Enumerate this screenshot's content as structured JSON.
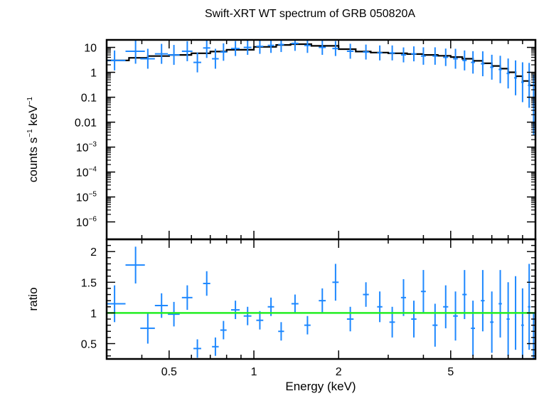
{
  "chart_data": {
    "type": "scatter",
    "title": "Swift-XRT WT spectrum of GRB 050820A",
    "xlabel": "Energy (keV)",
    "xscale": "log",
    "xlim": [
      0.3,
      10.0
    ],
    "xticks": [
      {
        "value": 0.5,
        "label": "0.5"
      },
      {
        "value": 1,
        "label": "1"
      },
      {
        "value": 2,
        "label": "2"
      },
      {
        "value": 5,
        "label": "5"
      }
    ],
    "colors": {
      "data": "#1e88ff",
      "model": "#000000",
      "unity": "#22ee22"
    },
    "panels": [
      {
        "name": "spectrum",
        "ylabel_main": "counts s",
        "ylabel_sup1": "−1",
        "ylabel_mid": " keV",
        "ylabel_sup2": "−1",
        "yscale": "log",
        "ylim": [
          2e-07,
          20
        ],
        "yticks": [
          {
            "value": 10,
            "base": "10",
            "exp": ""
          },
          {
            "value": 1,
            "base": "1",
            "exp": ""
          },
          {
            "value": 0.1,
            "base": "0.1",
            "exp": ""
          },
          {
            "value": 0.01,
            "base": "0.01",
            "exp": ""
          },
          {
            "value": 0.001,
            "base": "10",
            "exp": "−3"
          },
          {
            "value": 0.0001,
            "base": "10",
            "exp": "−4"
          },
          {
            "value": 1e-05,
            "base": "10",
            "exp": "−5"
          },
          {
            "value": 1e-06,
            "base": "10",
            "exp": "−6"
          }
        ],
        "model_x": [
          0.3,
          0.36,
          0.42,
          0.5,
          0.6,
          0.7,
          0.8,
          1.0,
          1.2,
          1.35,
          1.6,
          2.0,
          2.3,
          2.6,
          3.0,
          3.5,
          4.0,
          4.5,
          5.0,
          5.5,
          6.0,
          6.5,
          7.0,
          7.5,
          8.0,
          8.5,
          9.0,
          9.5,
          10.0
        ],
        "model_y": [
          3.0,
          3.8,
          4.5,
          5.0,
          5.8,
          6.8,
          8.0,
          10.5,
          12.5,
          13.5,
          11.5,
          8.5,
          6.8,
          6.2,
          5.8,
          5.4,
          5.0,
          4.6,
          4.1,
          3.5,
          2.9,
          2.3,
          1.8,
          1.4,
          1.0,
          0.7,
          0.45,
          0.3,
          0.25
        ],
        "points": [
          {
            "x": 0.32,
            "y": 3.0,
            "xerr": 0.03,
            "yerr": 0.4
          },
          {
            "x": 0.38,
            "y": 7.0,
            "xerr": 0.03,
            "yerr": 0.5
          },
          {
            "x": 0.42,
            "y": 3.5,
            "xerr": 0.025,
            "yerr": 0.4
          },
          {
            "x": 0.47,
            "y": 5.5,
            "xerr": 0.025,
            "yerr": 0.4
          },
          {
            "x": 0.52,
            "y": 5.0,
            "xerr": 0.025,
            "yerr": 0.4
          },
          {
            "x": 0.58,
            "y": 7.0,
            "xerr": 0.025,
            "yerr": 0.4
          },
          {
            "x": 0.63,
            "y": 2.5,
            "xerr": 0.02,
            "yerr": 0.4
          },
          {
            "x": 0.68,
            "y": 9.5,
            "xerr": 0.02,
            "yerr": 0.4
          },
          {
            "x": 0.73,
            "y": 3.5,
            "xerr": 0.02,
            "yerr": 0.4
          },
          {
            "x": 0.78,
            "y": 6.5,
            "xerr": 0.02,
            "yerr": 0.35
          },
          {
            "x": 0.86,
            "y": 9.0,
            "xerr": 0.03,
            "yerr": 0.3
          },
          {
            "x": 0.95,
            "y": 10.0,
            "xerr": 0.03,
            "yerr": 0.3
          },
          {
            "x": 1.05,
            "y": 11.0,
            "xerr": 0.03,
            "yerr": 0.3
          },
          {
            "x": 1.15,
            "y": 12.0,
            "xerr": 0.03,
            "yerr": 0.3
          },
          {
            "x": 1.25,
            "y": 13.0,
            "xerr": 0.03,
            "yerr": 0.3
          },
          {
            "x": 1.4,
            "y": 14.5,
            "xerr": 0.04,
            "yerr": 0.3
          },
          {
            "x": 1.55,
            "y": 12.0,
            "xerr": 0.04,
            "yerr": 0.3
          },
          {
            "x": 1.75,
            "y": 10.0,
            "xerr": 0.05,
            "yerr": 0.3
          },
          {
            "x": 1.95,
            "y": 9.0,
            "xerr": 0.05,
            "yerr": 0.3
          },
          {
            "x": 2.2,
            "y": 7.0,
            "xerr": 0.06,
            "yerr": 0.3
          },
          {
            "x": 2.5,
            "y": 6.5,
            "xerr": 0.06,
            "yerr": 0.3
          },
          {
            "x": 2.8,
            "y": 6.0,
            "xerr": 0.06,
            "yerr": 0.3
          },
          {
            "x": 3.1,
            "y": 6.0,
            "xerr": 0.07,
            "yerr": 0.3
          },
          {
            "x": 3.4,
            "y": 5.0,
            "xerr": 0.07,
            "yerr": 0.3
          },
          {
            "x": 3.7,
            "y": 5.5,
            "xerr": 0.08,
            "yerr": 0.3
          },
          {
            "x": 4.0,
            "y": 4.5,
            "xerr": 0.08,
            "yerr": 0.35
          },
          {
            "x": 4.4,
            "y": 4.5,
            "xerr": 0.09,
            "yerr": 0.35
          },
          {
            "x": 4.8,
            "y": 4.0,
            "xerr": 0.1,
            "yerr": 0.35
          },
          {
            "x": 5.2,
            "y": 3.5,
            "xerr": 0.1,
            "yerr": 0.4
          },
          {
            "x": 5.6,
            "y": 3.0,
            "xerr": 0.1,
            "yerr": 0.4
          },
          {
            "x": 6.0,
            "y": 2.5,
            "xerr": 0.1,
            "yerr": 0.45
          },
          {
            "x": 6.5,
            "y": 2.2,
            "xerr": 0.1,
            "yerr": 0.5
          },
          {
            "x": 7.0,
            "y": 1.6,
            "xerr": 0.1,
            "yerr": 0.5
          },
          {
            "x": 7.5,
            "y": 1.3,
            "xerr": 0.1,
            "yerr": 0.55
          },
          {
            "x": 8.0,
            "y": 0.9,
            "xerr": 0.1,
            "yerr": 0.6
          },
          {
            "x": 8.5,
            "y": 0.6,
            "xerr": 0.1,
            "yerr": 0.7
          },
          {
            "x": 9.0,
            "y": 0.4,
            "xerr": 0.1,
            "yerr": 0.8
          },
          {
            "x": 9.5,
            "y": 0.3,
            "xerr": 0.1,
            "yerr": 0.9
          },
          {
            "x": 9.85,
            "y": 0.05,
            "xerr": 0.1,
            "yerr": 1.2
          }
        ]
      },
      {
        "name": "ratio",
        "ylabel": "ratio",
        "yscale": "linear",
        "ylim": [
          0.25,
          2.2
        ],
        "unity": 1.0,
        "yticks": [
          {
            "value": 0.5,
            "label": "0.5"
          },
          {
            "value": 1,
            "label": "1"
          },
          {
            "value": 1.5,
            "label": "1.5"
          },
          {
            "value": 2,
            "label": "2"
          }
        ],
        "points": [
          {
            "x": 0.32,
            "y": 1.15,
            "xerr": 0.03,
            "yerr": 0.3
          },
          {
            "x": 0.38,
            "y": 1.78,
            "xerr": 0.03,
            "yerr": 0.3
          },
          {
            "x": 0.42,
            "y": 0.75,
            "xerr": 0.025,
            "yerr": 0.25
          },
          {
            "x": 0.47,
            "y": 1.12,
            "xerr": 0.025,
            "yerr": 0.2
          },
          {
            "x": 0.52,
            "y": 0.98,
            "xerr": 0.025,
            "yerr": 0.2
          },
          {
            "x": 0.58,
            "y": 1.25,
            "xerr": 0.025,
            "yerr": 0.2
          },
          {
            "x": 0.63,
            "y": 0.42,
            "xerr": 0.02,
            "yerr": 0.15
          },
          {
            "x": 0.68,
            "y": 1.48,
            "xerr": 0.02,
            "yerr": 0.2
          },
          {
            "x": 0.73,
            "y": 0.45,
            "xerr": 0.02,
            "yerr": 0.15
          },
          {
            "x": 0.78,
            "y": 0.72,
            "xerr": 0.02,
            "yerr": 0.15
          },
          {
            "x": 0.86,
            "y": 1.05,
            "xerr": 0.03,
            "yerr": 0.15
          },
          {
            "x": 0.95,
            "y": 0.95,
            "xerr": 0.03,
            "yerr": 0.15
          },
          {
            "x": 1.05,
            "y": 0.88,
            "xerr": 0.03,
            "yerr": 0.15
          },
          {
            "x": 1.15,
            "y": 1.1,
            "xerr": 0.03,
            "yerr": 0.15
          },
          {
            "x": 1.25,
            "y": 0.7,
            "xerr": 0.03,
            "yerr": 0.15
          },
          {
            "x": 1.4,
            "y": 1.15,
            "xerr": 0.04,
            "yerr": 0.15
          },
          {
            "x": 1.55,
            "y": 0.8,
            "xerr": 0.04,
            "yerr": 0.15
          },
          {
            "x": 1.75,
            "y": 1.2,
            "xerr": 0.05,
            "yerr": 0.2
          },
          {
            "x": 1.95,
            "y": 1.5,
            "xerr": 0.05,
            "yerr": 0.3
          },
          {
            "x": 2.2,
            "y": 0.9,
            "xerr": 0.06,
            "yerr": 0.2
          },
          {
            "x": 2.5,
            "y": 1.3,
            "xerr": 0.06,
            "yerr": 0.2
          },
          {
            "x": 2.8,
            "y": 1.1,
            "xerr": 0.06,
            "yerr": 0.25
          },
          {
            "x": 3.1,
            "y": 0.85,
            "xerr": 0.07,
            "yerr": 0.25
          },
          {
            "x": 3.4,
            "y": 1.25,
            "xerr": 0.07,
            "yerr": 0.3
          },
          {
            "x": 3.7,
            "y": 0.9,
            "xerr": 0.08,
            "yerr": 0.3
          },
          {
            "x": 4.0,
            "y": 1.35,
            "xerr": 0.08,
            "yerr": 0.35
          },
          {
            "x": 4.4,
            "y": 0.8,
            "xerr": 0.09,
            "yerr": 0.35
          },
          {
            "x": 4.8,
            "y": 1.1,
            "xerr": 0.1,
            "yerr": 0.35
          },
          {
            "x": 5.2,
            "y": 0.95,
            "xerr": 0.1,
            "yerr": 0.4
          },
          {
            "x": 5.6,
            "y": 1.3,
            "xerr": 0.1,
            "yerr": 0.4
          },
          {
            "x": 6.0,
            "y": 0.75,
            "xerr": 0.1,
            "yerr": 0.45
          },
          {
            "x": 6.5,
            "y": 1.2,
            "xerr": 0.1,
            "yerr": 0.5
          },
          {
            "x": 7.0,
            "y": 0.85,
            "xerr": 0.1,
            "yerr": 0.5
          },
          {
            "x": 7.5,
            "y": 1.15,
            "xerr": 0.1,
            "yerr": 0.55
          },
          {
            "x": 8.0,
            "y": 0.9,
            "xerr": 0.1,
            "yerr": 0.6
          },
          {
            "x": 8.5,
            "y": 1.0,
            "xerr": 0.1,
            "yerr": 0.6
          },
          {
            "x": 9.0,
            "y": 0.8,
            "xerr": 0.1,
            "yerr": 0.6
          },
          {
            "x": 9.5,
            "y": 1.1,
            "xerr": 0.1,
            "yerr": 0.7
          },
          {
            "x": 9.85,
            "y": 0.2,
            "xerr": 0.1,
            "yerr": 0.8
          }
        ]
      }
    ]
  }
}
